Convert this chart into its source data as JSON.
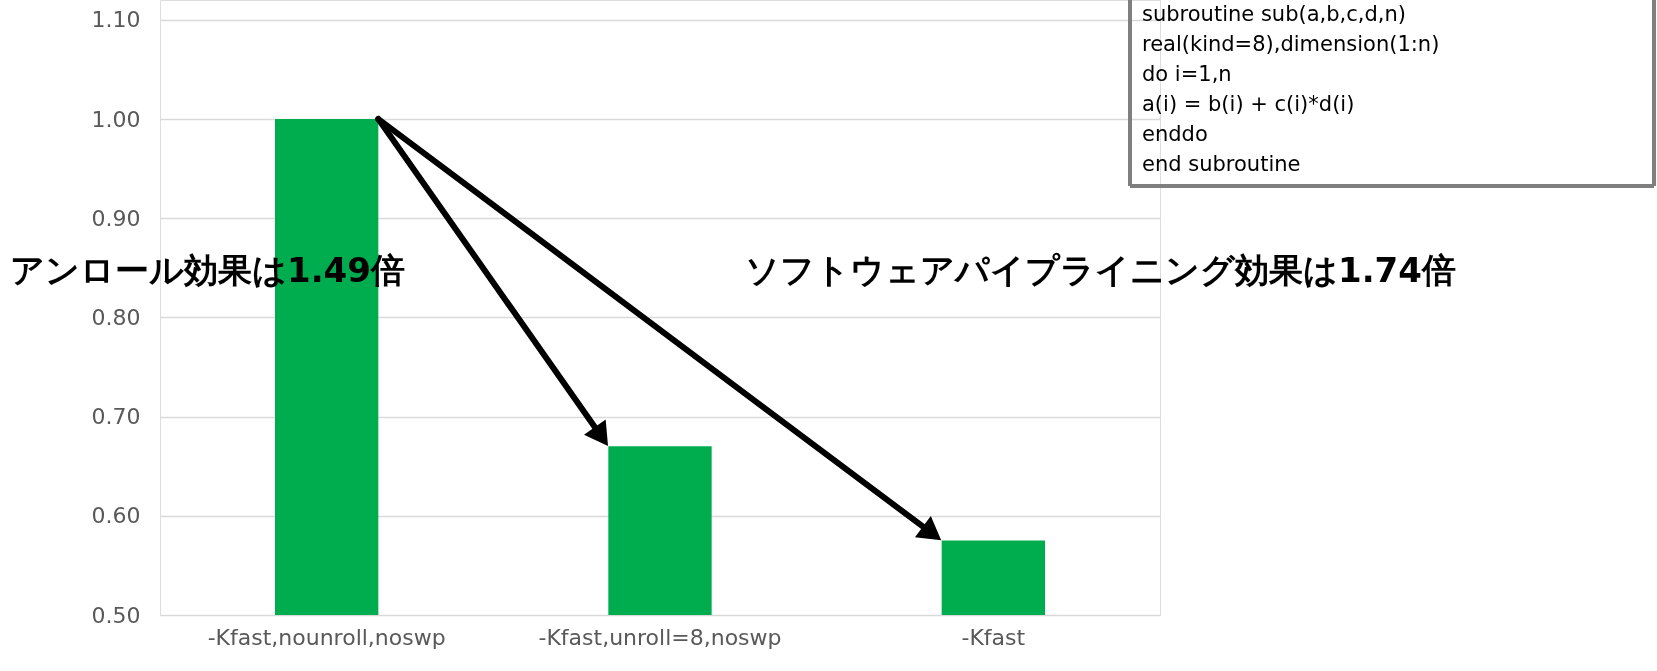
{
  "chart_data": {
    "type": "bar",
    "categories": [
      "-Kfast,nounroll,noswp",
      "-Kfast,unroll=8,noswp",
      "-Kfast"
    ],
    "values": [
      1.0,
      0.67,
      0.575
    ],
    "color": "#00ad4e",
    "ylim": [
      0.5,
      1.12
    ],
    "yticks": [
      {
        "value": 0.5,
        "label": "0.50"
      },
      {
        "value": 0.6,
        "label": "0.60"
      },
      {
        "value": 0.7,
        "label": "0.70"
      },
      {
        "value": 0.8,
        "label": "0.80"
      },
      {
        "value": 0.9,
        "label": "0.90"
      },
      {
        "value": 1.0,
        "label": "1.00"
      },
      {
        "value": 1.1,
        "label": "1.10"
      }
    ],
    "grid": "y",
    "annotations": [
      "アンロール効果は1.49倍",
      "ソフトウェアパイプライニング効果は1.74倍",
      "subroutine sub(a,b,c,d,n)\n  real(kind=8),dimension(1:n)\n  do i=1,n\n    a(i) = b(i) + c(i)*d(i)\n  enddo\nend subroutine"
    ]
  }
}
